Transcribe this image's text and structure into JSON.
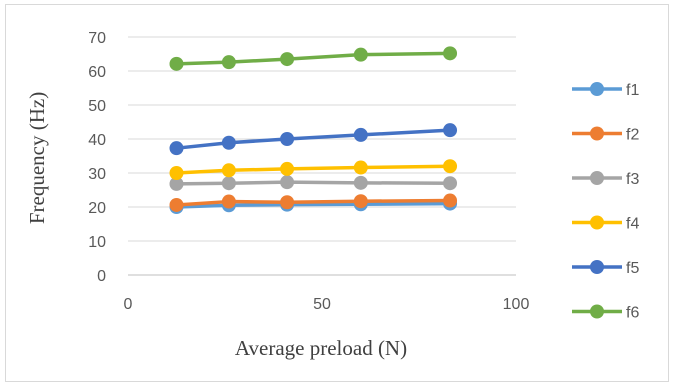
{
  "chart_data": {
    "type": "line",
    "xlabel": "Average preload (N)",
    "ylabel": "Frequency (Hz)",
    "xlim": [
      0,
      100
    ],
    "ylim": [
      0,
      70
    ],
    "xticks": [
      0,
      50,
      100
    ],
    "yticks": [
      0,
      10,
      20,
      30,
      40,
      50,
      60,
      70
    ],
    "grid": "horizontal",
    "legend_position": "right",
    "x": [
      12.5,
      26,
      41,
      60,
      83
    ],
    "series": [
      {
        "name": "f1",
        "color": "#5b9bd5",
        "values": [
          20.0,
          20.5,
          20.7,
          20.8,
          21.0
        ]
      },
      {
        "name": "f2",
        "color": "#ed7d31",
        "values": [
          20.6,
          21.6,
          21.4,
          21.7,
          21.9
        ]
      },
      {
        "name": "f3",
        "color": "#a5a5a5",
        "values": [
          26.8,
          27.0,
          27.3,
          27.1,
          27.0
        ]
      },
      {
        "name": "f4",
        "color": "#ffc000",
        "values": [
          30.0,
          30.8,
          31.2,
          31.6,
          32.0
        ]
      },
      {
        "name": "f5",
        "color": "#4472c4",
        "values": [
          37.3,
          38.9,
          40.0,
          41.2,
          42.6
        ]
      },
      {
        "name": "f6",
        "color": "#70ad47",
        "values": [
          62.1,
          62.6,
          63.5,
          64.8,
          65.2
        ]
      }
    ]
  }
}
